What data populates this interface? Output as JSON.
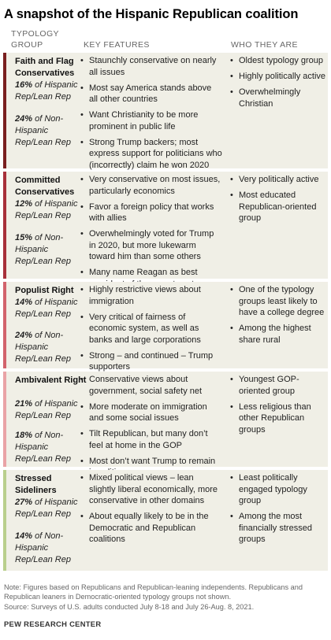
{
  "title": "A snapshot of the Hispanic Republican coalition",
  "columns": {
    "group_line1": "TYPOLOGY",
    "group_line2": "GROUP",
    "features": "KEY FEATURES",
    "who": "WHO THEY ARE"
  },
  "rows": [
    {
      "name": "Faith and Flag Conservatives",
      "bar_color": "#7a1f1f",
      "hisp_pct": "16%",
      "hisp_label": "of Hispanic Rep/Lean Rep",
      "nonhisp_pct": "24%",
      "nonhisp_label": "of Non-Hispanic Rep/Lean Rep",
      "features": [
        "Staunchly conservative on nearly all issues",
        "Most say America stands above all other countries",
        "Want Christianity to be more prominent in public life",
        "Strong Trump backers; most express support for politicians who (incorrectly) claim he won 2020 election"
      ],
      "who": [
        "Oldest typology group",
        "Highly politically active",
        "Overwhelmingly Christian"
      ]
    },
    {
      "name": "Committed Conservatives",
      "bar_color": "#a8303a",
      "hisp_pct": "12%",
      "hisp_label": "of Hispanic Rep/Lean Rep",
      "nonhisp_pct": "15%",
      "nonhisp_label": "of Non-Hispanic Rep/Lean Rep",
      "features": [
        "Very conservative on most issues, particularly economics",
        "Favor a foreign policy that works with allies",
        "Overwhelmingly voted for Trump in 2020, but more lukewarm toward him than some others",
        "Many name Reagan as best president of the recent past"
      ],
      "who": [
        "Very politically active",
        "Most educated Republican-oriented group"
      ]
    },
    {
      "name": "Populist Right",
      "bar_color": "#d2636c",
      "hisp_pct": "14%",
      "hisp_label": "of Hispanic Rep/Lean Rep",
      "nonhisp_pct": "24%",
      "nonhisp_label": "of Non-Hispanic Rep/Lean Rep",
      "features": [
        "Highly restrictive views about immigration",
        "Very critical of fairness of economic system, as well as banks and large corporations",
        "Strong – and continued – Trump supporters"
      ],
      "who": [
        "One of the typology groups least likely to have a college degree",
        "Among the highest share rural"
      ]
    },
    {
      "name": "Ambivalent Right",
      "bar_color": "#e9a3a6",
      "hisp_pct": "21%",
      "hisp_label": "of Hispanic Rep/Lean Rep",
      "nonhisp_pct": "18%",
      "nonhisp_label": "of Non-Hispanic Rep/Lean Rep",
      "features": [
        "Conservative views about government, social safety net",
        "More moderate on immigration and some social issues",
        "Tilt Republican, but many don’t feel at home in the GOP",
        "Most don’t want Trump to remain in politics"
      ],
      "who": [
        "Youngest GOP-oriented group",
        "Less religious than other Republican groups"
      ]
    },
    {
      "name": "Stressed Sideliners",
      "bar_color": "#b9cf8c",
      "hisp_pct": "27%",
      "hisp_label": "of Hispanic Rep/Lean Rep",
      "nonhisp_pct": "14%",
      "nonhisp_label": "of Non-Hispanic Rep/Lean Rep",
      "features": [
        "Mixed political views – lean slightly liberal economically, more conservative in other domains",
        "About equally likely to be in the Democratic and Republican coalitions"
      ],
      "who": [
        "Least politically engaged typology group",
        "Among the most financially stressed groups"
      ]
    }
  ],
  "note": "Note: Figures based on Republicans and Republican-leaning independents. Republicans and Republican leaners in Democratic-oriented typology groups not shown.",
  "source": "Source: Surveys of U.S. adults conducted July 8-18 and July 26-Aug. 8, 2021.",
  "credit": "PEW RESEARCH CENTER"
}
